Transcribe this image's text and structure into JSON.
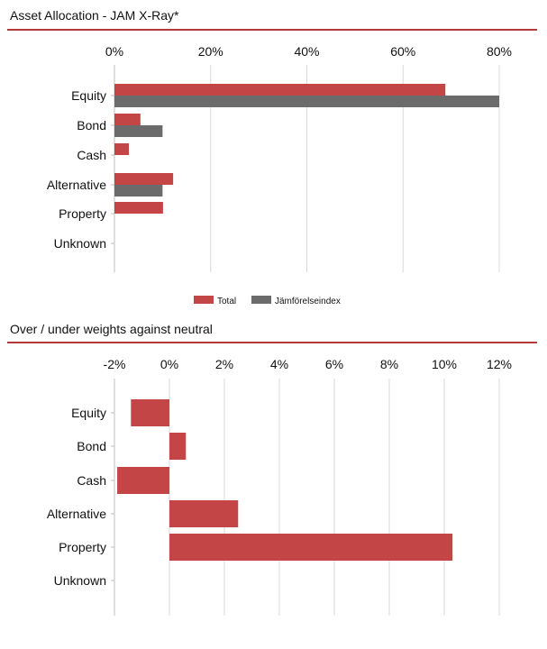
{
  "colors": {
    "accent": "#b53a3a",
    "total": "#c44545",
    "benchmark": "#6b6b6b",
    "grid": "#d9d9d9",
    "axis": "#bfbfbf"
  },
  "chart_data": [
    {
      "type": "bar",
      "orientation": "horizontal",
      "title": "Asset Allocation - JAM X-Ray*",
      "categories": [
        "Equity",
        "Bond",
        "Cash",
        "Alternative",
        "Property",
        "Unknown"
      ],
      "series": [
        {
          "name": "Total",
          "values": [
            68.8,
            5.4,
            3.0,
            12.2,
            10.1,
            0
          ]
        },
        {
          "name": "Jämförelseindex",
          "values": [
            80.0,
            10.0,
            0,
            10.0,
            0,
            0
          ]
        }
      ],
      "xlim": [
        0,
        80
      ],
      "xticks": [
        "0%",
        "20%",
        "40%",
        "60%",
        "80%"
      ],
      "legend": "bottom",
      "grid": true
    },
    {
      "type": "bar",
      "orientation": "horizontal",
      "title": "Over / under weights against neutral",
      "categories": [
        "Equity",
        "Bond",
        "Cash",
        "Alternative",
        "Property",
        "Unknown"
      ],
      "values": [
        -1.4,
        0.6,
        -1.9,
        2.5,
        10.3,
        0
      ],
      "xlim": [
        -2,
        12
      ],
      "xticks": [
        "-2%",
        "0%",
        "2%",
        "4%",
        "6%",
        "8%",
        "10%",
        "12%"
      ],
      "grid": true
    }
  ]
}
